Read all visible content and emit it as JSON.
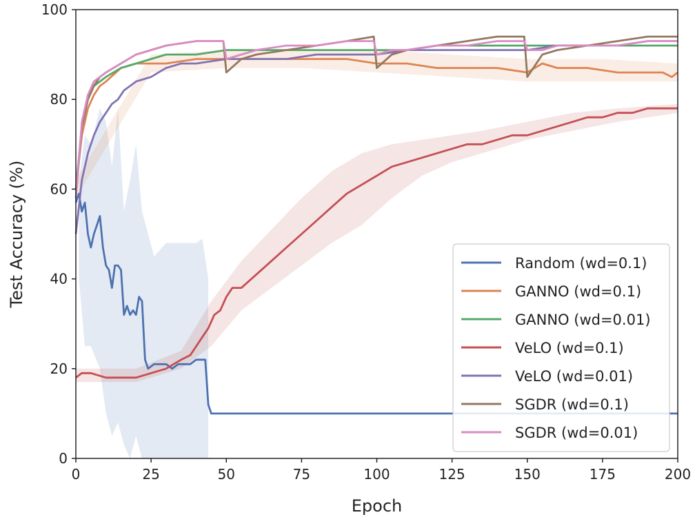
{
  "chart_data": {
    "type": "line",
    "xlabel": "Epoch",
    "ylabel": "Test Accuracy (%)",
    "xlim": [
      0,
      200
    ],
    "ylim": [
      0,
      100
    ],
    "xticks": [
      0,
      25,
      50,
      75,
      100,
      125,
      150,
      175,
      200
    ],
    "yticks": [
      0,
      20,
      40,
      60,
      80,
      100
    ],
    "grid": false,
    "legend_position": "bottom-right",
    "series": [
      {
        "name": "Random (wd=0.1)",
        "color": "#4c72b0",
        "x": [
          0,
          1,
          2,
          3,
          4,
          5,
          6,
          7,
          8,
          9,
          10,
          11,
          12,
          13,
          14,
          15,
          16,
          17,
          18,
          19,
          20,
          21,
          22,
          23,
          24,
          26,
          28,
          30,
          32,
          34,
          36,
          38,
          40,
          42,
          43,
          44,
          45,
          60,
          100,
          150,
          200
        ],
        "y": [
          57,
          59,
          55,
          57,
          50,
          47,
          50,
          52,
          54,
          47,
          43,
          42,
          38,
          43,
          43,
          42,
          32,
          34,
          32,
          33,
          32,
          36,
          35,
          22,
          20,
          21,
          21,
          21,
          20,
          21,
          21,
          21,
          22,
          22,
          22,
          12,
          10,
          10,
          10,
          10,
          10
        ],
        "band": {
          "x": [
            1,
            3,
            5,
            8,
            10,
            12,
            14,
            16,
            18,
            20,
            22,
            24,
            26,
            30,
            35,
            40,
            42,
            44
          ],
          "lower": [
            40,
            25,
            25,
            20,
            10,
            5,
            8,
            3,
            0,
            5,
            0,
            0,
            0,
            0,
            0,
            0,
            0,
            0
          ],
          "upper": [
            62,
            72,
            70,
            78,
            75,
            65,
            78,
            55,
            62,
            70,
            55,
            50,
            45,
            48,
            48,
            48,
            49,
            40
          ]
        }
      },
      {
        "name": "GANNO (wd=0.1)",
        "color": "#dd8452",
        "x": [
          0,
          2,
          4,
          6,
          8,
          10,
          15,
          20,
          25,
          30,
          40,
          50,
          60,
          70,
          80,
          90,
          100,
          110,
          120,
          130,
          140,
          150,
          155,
          160,
          170,
          180,
          190,
          195,
          198,
          200
        ],
        "y": [
          60,
          72,
          78,
          81,
          83,
          84,
          87,
          88,
          88,
          88,
          89,
          89,
          89,
          89,
          89,
          89,
          88,
          88,
          87,
          87,
          87,
          86,
          88,
          87,
          87,
          86,
          86,
          86,
          85,
          86
        ],
        "band": {
          "x": [
            0,
            25,
            50,
            75,
            100,
            125,
            150,
            175,
            200
          ],
          "lower": [
            58,
            86,
            87,
            87,
            86,
            85,
            84,
            84,
            84
          ],
          "upper": [
            62,
            90,
            91,
            91,
            91,
            90,
            89,
            89,
            88
          ]
        }
      },
      {
        "name": "GANNO (wd=0.01)",
        "color": "#55a868",
        "x": [
          0,
          2,
          4,
          6,
          8,
          10,
          15,
          20,
          25,
          30,
          40,
          50,
          60,
          70,
          80,
          90,
          100,
          110,
          120,
          130,
          140,
          150,
          160,
          170,
          180,
          190,
          200
        ],
        "y": [
          60,
          74,
          80,
          83,
          84,
          85,
          87,
          88,
          89,
          90,
          90,
          91,
          91,
          91,
          91,
          91,
          91,
          91,
          92,
          92,
          92,
          92,
          92,
          92,
          92,
          92,
          92
        ]
      },
      {
        "name": "VeLO (wd=0.1)",
        "color": "#c44e52",
        "x": [
          0,
          2,
          5,
          10,
          15,
          20,
          25,
          30,
          35,
          38,
          40,
          42,
          44,
          46,
          48,
          50,
          52,
          55,
          60,
          65,
          70,
          75,
          80,
          85,
          90,
          95,
          100,
          105,
          110,
          115,
          120,
          125,
          130,
          135,
          140,
          145,
          150,
          155,
          160,
          165,
          170,
          175,
          180,
          185,
          190,
          195,
          200
        ],
        "y": [
          18,
          19,
          19,
          18,
          18,
          18,
          19,
          20,
          22,
          23,
          25,
          27,
          29,
          32,
          33,
          36,
          38,
          38,
          41,
          44,
          47,
          50,
          53,
          56,
          59,
          61,
          63,
          65,
          66,
          67,
          68,
          69,
          70,
          70,
          71,
          72,
          72,
          73,
          74,
          75,
          76,
          76,
          77,
          77,
          78,
          78,
          78
        ],
        "band": {
          "x": [
            0,
            20,
            35,
            45,
            55,
            65,
            75,
            85,
            95,
            105,
            115,
            125,
            135,
            150,
            165,
            180,
            200
          ],
          "lower": [
            17,
            17,
            20,
            25,
            33,
            38,
            43,
            48,
            52,
            58,
            63,
            66,
            68,
            71,
            73,
            75,
            77
          ],
          "upper": [
            20,
            20,
            24,
            35,
            44,
            51,
            58,
            64,
            68,
            70,
            71,
            72,
            73,
            75,
            77,
            78,
            79
          ]
        }
      },
      {
        "name": "VeLO (wd=0.01)",
        "color": "#8172b3",
        "x": [
          0,
          2,
          4,
          6,
          8,
          10,
          12,
          14,
          16,
          18,
          20,
          25,
          30,
          35,
          40,
          50,
          60,
          70,
          80,
          90,
          100,
          110,
          120,
          130,
          140,
          150,
          160,
          170,
          180,
          190,
          200
        ],
        "y": [
          50,
          62,
          68,
          72,
          75,
          77,
          79,
          80,
          82,
          83,
          84,
          85,
          87,
          88,
          88,
          89,
          89,
          89,
          90,
          90,
          90,
          91,
          91,
          91,
          91,
          91,
          92,
          92,
          92,
          93,
          93
        ]
      },
      {
        "name": "SGDR (wd=0.1)",
        "color": "#937860",
        "x": [
          0,
          2,
          4,
          6,
          8,
          10,
          15,
          20,
          30,
          40,
          49,
          50,
          55,
          60,
          70,
          80,
          90,
          99,
          100,
          105,
          110,
          120,
          130,
          140,
          149,
          150,
          155,
          160,
          170,
          180,
          190,
          200
        ],
        "y": [
          58,
          74,
          80,
          83,
          85,
          86,
          88,
          90,
          92,
          93,
          93,
          86,
          89,
          90,
          91,
          92,
          93,
          94,
          87,
          90,
          91,
          92,
          93,
          94,
          94,
          85,
          90,
          91,
          92,
          93,
          94,
          94
        ]
      },
      {
        "name": "SGDR (wd=0.01)",
        "color": "#da8bc3",
        "x": [
          0,
          2,
          4,
          6,
          8,
          10,
          15,
          20,
          30,
          40,
          49,
          50,
          55,
          60,
          70,
          80,
          90,
          99,
          100,
          105,
          110,
          120,
          130,
          140,
          149,
          150,
          155,
          160,
          170,
          180,
          190,
          200
        ],
        "y": [
          58,
          75,
          81,
          84,
          85,
          86,
          88,
          90,
          92,
          93,
          93,
          89,
          90,
          91,
          92,
          92,
          93,
          93,
          90,
          91,
          91,
          92,
          92,
          93,
          93,
          91,
          91,
          92,
          92,
          92,
          93,
          93
        ]
      }
    ]
  }
}
